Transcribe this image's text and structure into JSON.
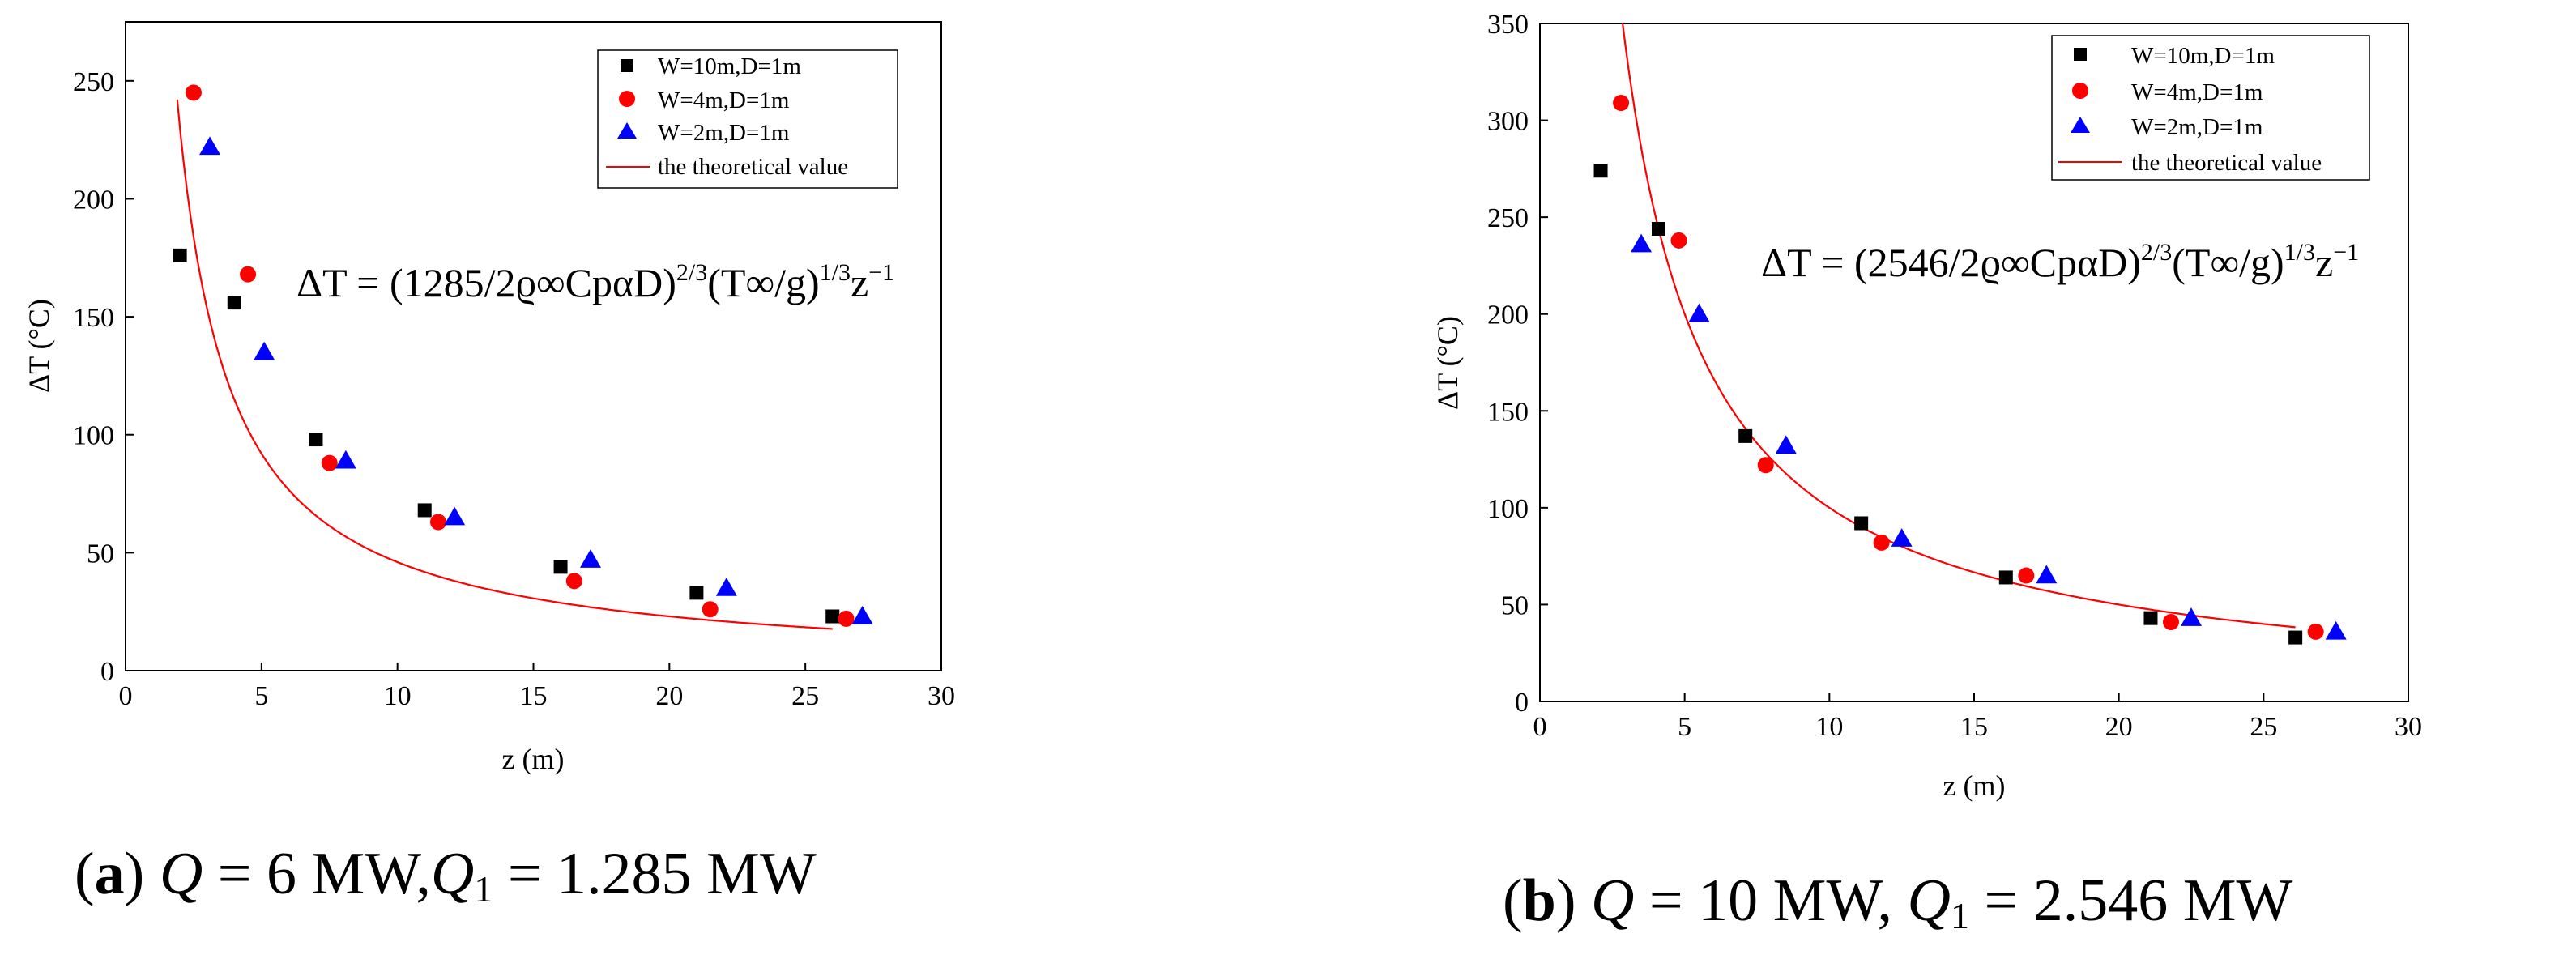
{
  "chart_data": [
    {
      "type": "scatter",
      "xlabel": "z (m)",
      "ylabel": "ΔT (°C)",
      "xlim": [
        0,
        30
      ],
      "ylim": [
        0,
        275
      ],
      "xticks": [
        0,
        5,
        10,
        15,
        20,
        25,
        30
      ],
      "yticks": [
        0,
        50,
        100,
        150,
        200,
        250
      ],
      "legend_position": "top-right",
      "series": [
        {
          "name": "W=10m,D=1m",
          "marker": "square",
          "color": "#000000",
          "x": [
            2.0,
            4.0,
            7.0,
            11.0,
            16.0,
            21.0,
            26.0
          ],
          "y": [
            176,
            156,
            98,
            68,
            44,
            33,
            23
          ]
        },
        {
          "name": "W=4m,D=1m",
          "marker": "circle",
          "color": "#ff0000",
          "x": [
            2.5,
            4.5,
            7.5,
            11.5,
            16.5,
            21.5,
            26.5
          ],
          "y": [
            245,
            168,
            88,
            63,
            38,
            26,
            22
          ]
        },
        {
          "name": "W=2m,D=1m",
          "marker": "triangle",
          "color": "#0000ff",
          "x": [
            3.1,
            5.1,
            8.1,
            12.1,
            17.1,
            22.1,
            27.1
          ],
          "y": [
            222,
            135,
            89,
            65,
            47,
            35,
            23
          ]
        }
      ],
      "theory": {
        "name": "the theoretical value",
        "color": "#ff0000",
        "coef": 460,
        "x_range": [
          1.9,
          26.0
        ]
      },
      "formula": {
        "base": "ΔT = (1285/2ϱ∞CpαD)",
        "exp1": "2/3",
        "mid": "(T∞/g)",
        "exp2": "1/3",
        "tail": "z",
        "exp3": "−1"
      },
      "caption": {
        "label": "a",
        "part1": "Q",
        "part2": " = 6 MW,",
        "part3": "Q",
        "sub": "1",
        "part4": " = 1.285 MW"
      }
    },
    {
      "type": "scatter",
      "xlabel": "z (m)",
      "ylabel": "ΔT (°C)",
      "xlim": [
        0,
        30
      ],
      "ylim": [
        0,
        350
      ],
      "xticks": [
        0,
        5,
        10,
        15,
        20,
        25,
        30
      ],
      "yticks": [
        0,
        50,
        100,
        150,
        200,
        250,
        300,
        350
      ],
      "legend_position": "top-right",
      "series": [
        {
          "name": "W=10m,D=1m",
          "marker": "square",
          "color": "#000000",
          "x": [
            2.1,
            4.1,
            7.1,
            11.1,
            16.1,
            21.1,
            26.1
          ],
          "y": [
            274,
            244,
            137,
            92,
            64,
            43,
            33
          ]
        },
        {
          "name": "W=4m,D=1m",
          "marker": "circle",
          "color": "#ff0000",
          "x": [
            2.8,
            4.8,
            7.8,
            11.8,
            16.8,
            21.8,
            26.8
          ],
          "y": [
            309,
            238,
            122,
            82,
            65,
            41,
            36
          ]
        },
        {
          "name": "W=2m,D=1m",
          "marker": "triangle",
          "color": "#0000ff",
          "x": [
            3.5,
            5.5,
            8.5,
            12.5,
            17.5,
            22.5,
            27.5
          ],
          "y": [
            236,
            200,
            132,
            84,
            65,
            43,
            36
          ]
        }
      ],
      "theory": {
        "name": "the theoretical value",
        "color": "#ff0000",
        "coef": 1000,
        "x_range": [
          2.35,
          26.1
        ]
      },
      "formula": {
        "base": "ΔT = (2546/2ϱ∞CpαD)",
        "exp1": "2/3",
        "mid": "(T∞/g)",
        "exp2": "1/3",
        "tail": "z",
        "exp3": "−1"
      },
      "caption": {
        "label": "b",
        "part1": "Q",
        "part2": " = 10 MW, ",
        "part3": "Q",
        "sub": "1",
        "part4": " = 2.546 MW"
      }
    }
  ]
}
